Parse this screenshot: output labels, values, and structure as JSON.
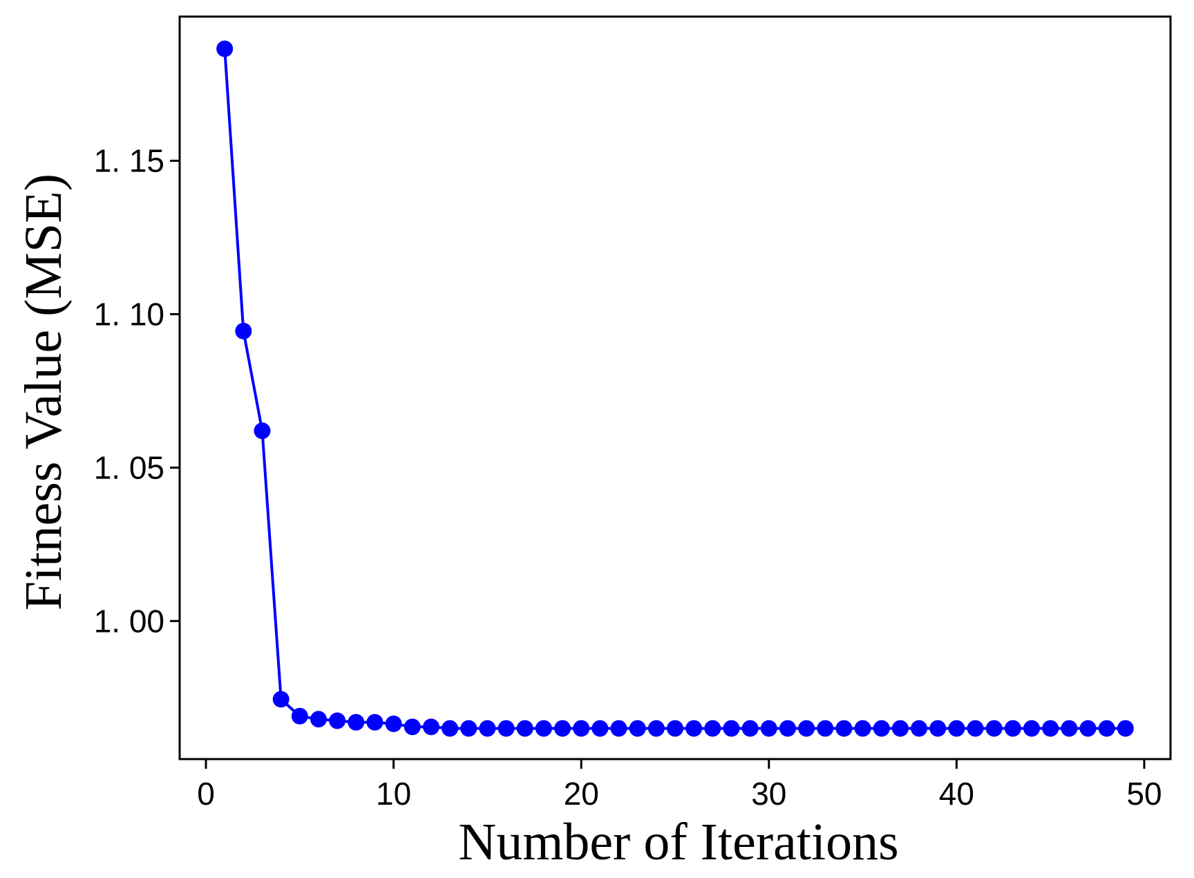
{
  "chart_data": {
    "type": "line",
    "xlabel": "Number of Iterations",
    "ylabel": "Fitness Value (MSE)",
    "xlim": [
      -1.4,
      51.4
    ],
    "ylim": [
      0.955,
      1.197
    ],
    "xticks": [
      0,
      10,
      20,
      30,
      40,
      50
    ],
    "xtick_labels": [
      "0",
      "10",
      "20",
      "30",
      "40",
      "50"
    ],
    "yticks": [
      1.0,
      1.05,
      1.1,
      1.15
    ],
    "ytick_labels": [
      "1. 00",
      "1. 05",
      "1. 10",
      "1. 15"
    ],
    "grid": false,
    "legend": false,
    "series": [
      {
        "color": "#0000ff",
        "marker": "circle",
        "x": [
          1,
          2,
          3,
          4,
          5,
          6,
          7,
          8,
          9,
          10,
          11,
          12,
          13,
          14,
          15,
          16,
          17,
          18,
          19,
          20,
          21,
          22,
          23,
          24,
          25,
          26,
          27,
          28,
          29,
          30,
          31,
          32,
          33,
          34,
          35,
          36,
          37,
          38,
          39,
          40,
          41,
          42,
          43,
          44,
          45,
          46,
          47,
          48,
          49
        ],
        "y": [
          1.1865,
          1.0945,
          1.062,
          0.9745,
          0.969,
          0.968,
          0.9675,
          0.967,
          0.967,
          0.9665,
          0.9655,
          0.9655,
          0.965,
          0.965,
          0.965,
          0.965,
          0.965,
          0.965,
          0.965,
          0.965,
          0.965,
          0.965,
          0.965,
          0.965,
          0.965,
          0.965,
          0.965,
          0.965,
          0.965,
          0.965,
          0.965,
          0.965,
          0.965,
          0.965,
          0.965,
          0.965,
          0.965,
          0.965,
          0.965,
          0.965,
          0.965,
          0.965,
          0.965,
          0.965,
          0.965,
          0.965,
          0.965,
          0.965,
          0.965
        ]
      }
    ]
  }
}
